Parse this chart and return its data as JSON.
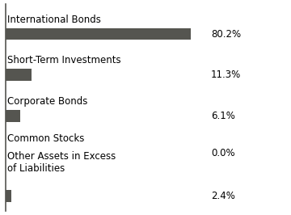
{
  "categories": [
    "International Bonds",
    "Short-Term Investments",
    "Corporate Bonds",
    "Common Stocks",
    "Other Assets in Excess\nof Liabilities"
  ],
  "values": [
    80.2,
    11.3,
    6.1,
    0.0,
    2.4
  ],
  "labels": [
    "80.2%",
    "11.3%",
    "6.1%",
    "0.0%",
    "2.4%"
  ],
  "bar_color": "#555550",
  "bar_height": 0.32,
  "background_color": "#ffffff",
  "text_color": "#000000",
  "label_fontsize": 8.5,
  "value_fontsize": 8.5,
  "xlim_max": 88,
  "spine_color": "#555550",
  "spine_linewidth": 1.2
}
